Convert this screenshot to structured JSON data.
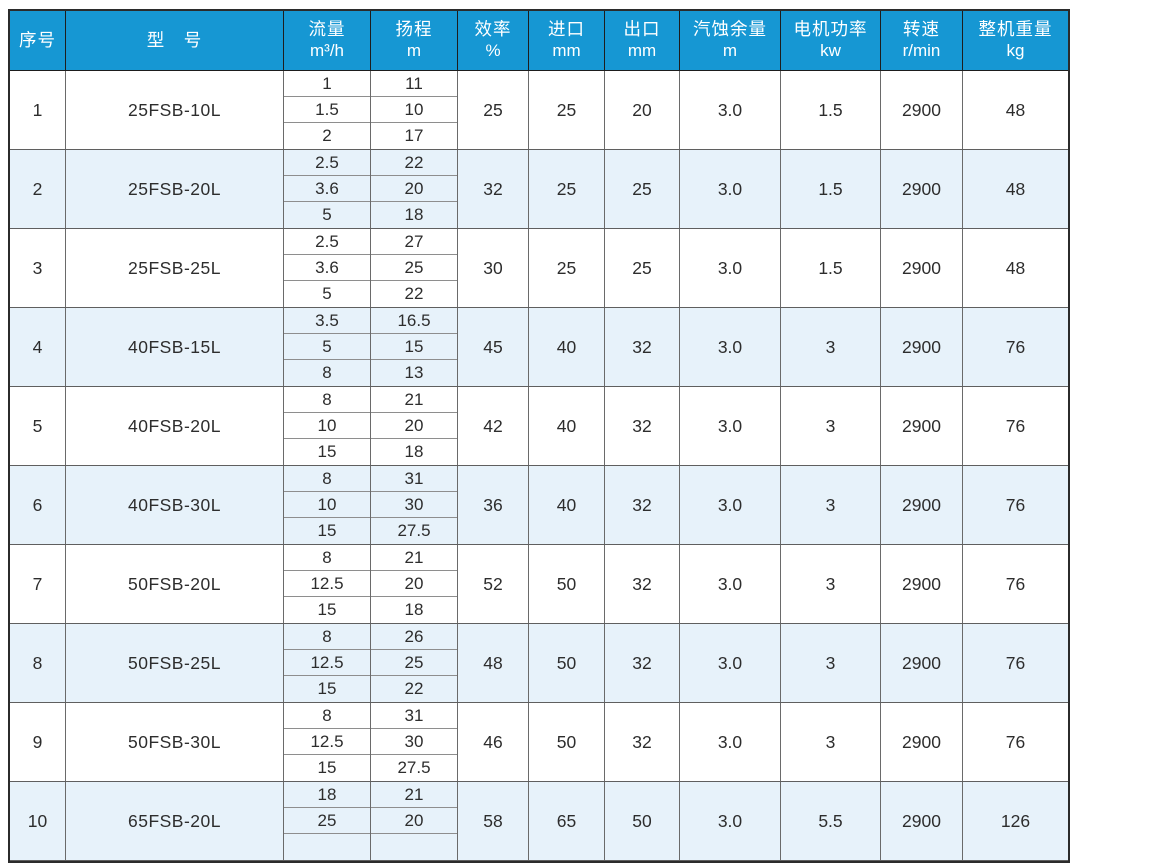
{
  "colors": {
    "header_bg": "#1697d3",
    "header_text": "#ffffff",
    "stripe_bg": "#e7f2fa",
    "grid_line": "#6a6a6a",
    "outer_border": "#2b2b2b",
    "body_text": "#2d2d2d"
  },
  "table": {
    "headers": [
      {
        "label": "序号",
        "unit": ""
      },
      {
        "label": "型　号",
        "unit": ""
      },
      {
        "label": "流量",
        "unit": "m³/h"
      },
      {
        "label": "扬程",
        "unit": "m"
      },
      {
        "label": "效率",
        "unit": "%"
      },
      {
        "label": "进口",
        "unit": "mm"
      },
      {
        "label": "出口",
        "unit": "mm"
      },
      {
        "label": "汽蚀余量",
        "unit": "m"
      },
      {
        "label": "电机功率",
        "unit": "kw"
      },
      {
        "label": "转速",
        "unit": "r/min"
      },
      {
        "label": "整机重量",
        "unit": "kg"
      }
    ],
    "rows": [
      {
        "no": "1",
        "model": "25FSB-10L",
        "flow": [
          "1",
          "1.5",
          "2"
        ],
        "head": [
          "11",
          "10",
          "17"
        ],
        "eff": "25",
        "inlet": "25",
        "outlet": "20",
        "npsh": "3.0",
        "power": "1.5",
        "speed": "2900",
        "weight": "48"
      },
      {
        "no": "2",
        "model": "25FSB-20L",
        "flow": [
          "2.5",
          "3.6",
          "5"
        ],
        "head": [
          "22",
          "20",
          "18"
        ],
        "eff": "32",
        "inlet": "25",
        "outlet": "25",
        "npsh": "3.0",
        "power": "1.5",
        "speed": "2900",
        "weight": "48"
      },
      {
        "no": "3",
        "model": "25FSB-25L",
        "flow": [
          "2.5",
          "3.6",
          "5"
        ],
        "head": [
          "27",
          "25",
          "22"
        ],
        "eff": "30",
        "inlet": "25",
        "outlet": "25",
        "npsh": "3.0",
        "power": "1.5",
        "speed": "2900",
        "weight": "48"
      },
      {
        "no": "4",
        "model": "40FSB-15L",
        "flow": [
          "3.5",
          "5",
          "8"
        ],
        "head": [
          "16.5",
          "15",
          "13"
        ],
        "eff": "45",
        "inlet": "40",
        "outlet": "32",
        "npsh": "3.0",
        "power": "3",
        "speed": "2900",
        "weight": "76"
      },
      {
        "no": "5",
        "model": "40FSB-20L",
        "flow": [
          "8",
          "10",
          "15"
        ],
        "head": [
          "21",
          "20",
          "18"
        ],
        "eff": "42",
        "inlet": "40",
        "outlet": "32",
        "npsh": "3.0",
        "power": "3",
        "speed": "2900",
        "weight": "76"
      },
      {
        "no": "6",
        "model": "40FSB-30L",
        "flow": [
          "8",
          "10",
          "15"
        ],
        "head": [
          "31",
          "30",
          "27.5"
        ],
        "eff": "36",
        "inlet": "40",
        "outlet": "32",
        "npsh": "3.0",
        "power": "3",
        "speed": "2900",
        "weight": "76"
      },
      {
        "no": "7",
        "model": "50FSB-20L",
        "flow": [
          "8",
          "12.5",
          "15"
        ],
        "head": [
          "21",
          "20",
          "18"
        ],
        "eff": "52",
        "inlet": "50",
        "outlet": "32",
        "npsh": "3.0",
        "power": "3",
        "speed": "2900",
        "weight": "76"
      },
      {
        "no": "8",
        "model": "50FSB-25L",
        "flow": [
          "8",
          "12.5",
          "15"
        ],
        "head": [
          "26",
          "25",
          "22"
        ],
        "eff": "48",
        "inlet": "50",
        "outlet": "32",
        "npsh": "3.0",
        "power": "3",
        "speed": "2900",
        "weight": "76"
      },
      {
        "no": "9",
        "model": "50FSB-30L",
        "flow": [
          "8",
          "12.5",
          "15"
        ],
        "head": [
          "31",
          "30",
          "27.5"
        ],
        "eff": "46",
        "inlet": "50",
        "outlet": "32",
        "npsh": "3.0",
        "power": "3",
        "speed": "2900",
        "weight": "76"
      },
      {
        "no": "10",
        "model": "65FSB-20L",
        "flow": [
          "18",
          "25",
          ""
        ],
        "head": [
          "21",
          "20",
          ""
        ],
        "eff": "58",
        "inlet": "65",
        "outlet": "50",
        "npsh": "3.0",
        "power": "5.5",
        "speed": "2900",
        "weight": "126"
      }
    ]
  }
}
